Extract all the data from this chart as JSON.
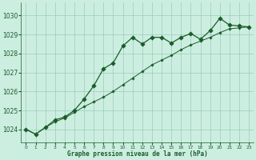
{
  "title": "Graphe pression niveau de la mer (hPa)",
  "background_color": "#cceee0",
  "grid_color": "#99ccbb",
  "line_color": "#1a5c2a",
  "xlim": [
    -0.5,
    23.5
  ],
  "ylim": [
    1023.3,
    1030.7
  ],
  "yticks": [
    1024,
    1025,
    1026,
    1027,
    1028,
    1029,
    1030
  ],
  "xticks": [
    0,
    1,
    2,
    3,
    4,
    5,
    6,
    7,
    8,
    9,
    10,
    11,
    12,
    13,
    14,
    15,
    16,
    17,
    18,
    19,
    20,
    21,
    22,
    23
  ],
  "series1_x": [
    0,
    1,
    2,
    3,
    4,
    5,
    6,
    7,
    8,
    9,
    10,
    11,
    12,
    13,
    14,
    15,
    16,
    17,
    18,
    19,
    20,
    21,
    22,
    23
  ],
  "series1_y": [
    1024.0,
    1023.75,
    1024.1,
    1024.5,
    1024.65,
    1025.0,
    1025.6,
    1026.3,
    1027.2,
    1027.5,
    1028.4,
    1028.85,
    1028.5,
    1028.85,
    1028.85,
    1028.55,
    1028.85,
    1029.05,
    1028.75,
    1029.2,
    1029.85,
    1029.5,
    1029.45,
    1029.4
  ],
  "series2_x": [
    0,
    1,
    2,
    3,
    4,
    5,
    6,
    7,
    8,
    9,
    10,
    11,
    12,
    13,
    14,
    15,
    16,
    17,
    18,
    19,
    20,
    21,
    22,
    23
  ],
  "series2_y": [
    1024.0,
    1023.75,
    1024.1,
    1024.4,
    1024.6,
    1024.9,
    1025.2,
    1025.45,
    1025.7,
    1026.0,
    1026.35,
    1026.7,
    1027.05,
    1027.4,
    1027.65,
    1027.9,
    1028.2,
    1028.45,
    1028.65,
    1028.85,
    1029.1,
    1029.3,
    1029.35,
    1029.4
  ]
}
